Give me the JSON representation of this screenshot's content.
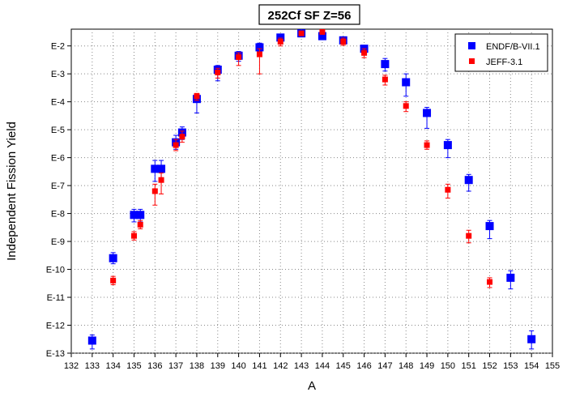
{
  "chart_data": {
    "type": "scatter",
    "title": "252Cf SF Z=56",
    "xlabel": "A",
    "ylabel": "Independent Fission Yield",
    "xlim": [
      132,
      155
    ],
    "ylim_exponent": [
      -13,
      -1.4
    ],
    "yscale": "log",
    "xticks": [
      "132",
      "133",
      "134",
      "135",
      "136",
      "137",
      "138",
      "139",
      "140",
      "141",
      "142",
      "143",
      "144",
      "145",
      "146",
      "147",
      "148",
      "149",
      "150",
      "151",
      "152",
      "153",
      "154",
      "155"
    ],
    "yticks": [
      {
        "label": "E-2",
        "exp": -2
      },
      {
        "label": "E-3",
        "exp": -3
      },
      {
        "label": "E-4",
        "exp": -4
      },
      {
        "label": "E-5",
        "exp": -5
      },
      {
        "label": "E-6",
        "exp": -6
      },
      {
        "label": "E-7",
        "exp": -7
      },
      {
        "label": "E-8",
        "exp": -8
      },
      {
        "label": "E-9",
        "exp": -9
      },
      {
        "label": "E-10",
        "exp": -10
      },
      {
        "label": "E-11",
        "exp": -11
      },
      {
        "label": "E-12",
        "exp": -12
      },
      {
        "label": "E-13",
        "exp": -13
      }
    ],
    "grid": true,
    "legend_position": "top-right",
    "series": [
      {
        "name": "ENDF/B-VII.1",
        "color": "#0000ff",
        "marker": "square-large",
        "points": [
          {
            "x": 133,
            "exp": -12.55,
            "err_lo": -12.85,
            "err_hi": -12.35
          },
          {
            "x": 134,
            "exp": -9.6,
            "err_lo": -9.8,
            "err_hi": -9.4
          },
          {
            "x": 135,
            "exp": -8.05,
            "err_lo": -8.3,
            "err_hi": -7.85
          },
          {
            "x": 135.3,
            "exp": -8.05,
            "err_lo": -8.3,
            "err_hi": -7.85
          },
          {
            "x": 136,
            "exp": -6.4,
            "err_lo": -6.85,
            "err_hi": -6.1
          },
          {
            "x": 136.3,
            "exp": -6.4,
            "err_lo": -6.85,
            "err_hi": -6.1
          },
          {
            "x": 137,
            "exp": -5.45,
            "err_lo": -5.7,
            "err_hi": -5.2
          },
          {
            "x": 137.3,
            "exp": -5.1,
            "err_lo": -5.35,
            "err_hi": -4.9
          },
          {
            "x": 138,
            "exp": -3.9,
            "err_lo": -4.4,
            "err_hi": -3.75
          },
          {
            "x": 139,
            "exp": -2.85,
            "err_lo": -3.25,
            "err_hi": -2.7
          },
          {
            "x": 140,
            "exp": -2.35,
            "err_lo": -2.55,
            "err_hi": -2.2
          },
          {
            "x": 141,
            "exp": -2.05,
            "err_lo": -2.2,
            "err_hi": -1.9
          },
          {
            "x": 142,
            "exp": -1.7,
            "err_lo": -1.82,
            "err_hi": -1.6
          },
          {
            "x": 143,
            "exp": -1.55,
            "err_lo": -1.62,
            "err_hi": -1.48
          },
          {
            "x": 144,
            "exp": -1.65,
            "err_lo": -1.72,
            "err_hi": -1.58
          },
          {
            "x": 145,
            "exp": -1.8,
            "err_lo": -1.92,
            "err_hi": -1.7
          },
          {
            "x": 146,
            "exp": -2.1,
            "err_lo": -2.25,
            "err_hi": -1.98
          },
          {
            "x": 147,
            "exp": -2.65,
            "err_lo": -2.9,
            "err_hi": -2.45
          },
          {
            "x": 148,
            "exp": -3.3,
            "err_lo": -3.8,
            "err_hi": -3.0
          },
          {
            "x": 149,
            "exp": -4.4,
            "err_lo": -4.95,
            "err_hi": -4.2
          },
          {
            "x": 150,
            "exp": -5.55,
            "err_lo": -6.0,
            "err_hi": -5.35
          },
          {
            "x": 151,
            "exp": -6.8,
            "err_lo": -7.2,
            "err_hi": -6.6
          },
          {
            "x": 152,
            "exp": -8.45,
            "err_lo": -8.9,
            "err_hi": -8.25
          },
          {
            "x": 153,
            "exp": -10.3,
            "err_lo": -10.7,
            "err_hi": -10.05
          },
          {
            "x": 154,
            "exp": -12.5,
            "err_lo": -12.85,
            "err_hi": -12.2
          }
        ]
      },
      {
        "name": "JEFF-3.1",
        "color": "#ff0000",
        "marker": "square-small",
        "points": [
          {
            "x": 134,
            "exp": -10.4,
            "err_lo": -10.55,
            "err_hi": -10.25
          },
          {
            "x": 135,
            "exp": -8.8,
            "err_lo": -8.95,
            "err_hi": -8.65
          },
          {
            "x": 135.3,
            "exp": -8.4,
            "err_lo": -8.55,
            "err_hi": -8.25
          },
          {
            "x": 136,
            "exp": -7.2,
            "err_lo": -7.7,
            "err_hi": -6.95
          },
          {
            "x": 136.3,
            "exp": -6.8,
            "err_lo": -7.3,
            "err_hi": -6.55
          },
          {
            "x": 137,
            "exp": -5.55,
            "err_lo": -5.75,
            "err_hi": -5.35
          },
          {
            "x": 137.3,
            "exp": -5.25,
            "err_lo": -5.45,
            "err_hi": -5.05
          },
          {
            "x": 138,
            "exp": -3.8,
            "err_lo": -3.95,
            "err_hi": -3.7
          },
          {
            "x": 139,
            "exp": -2.95,
            "err_lo": -3.15,
            "err_hi": -2.8
          },
          {
            "x": 140,
            "exp": -2.4,
            "err_lo": -2.7,
            "err_hi": -2.25
          },
          {
            "x": 141,
            "exp": -2.3,
            "err_lo": -3.0,
            "err_hi": -2.1
          },
          {
            "x": 142,
            "exp": -1.85,
            "err_lo": -2.0,
            "err_hi": -1.72
          },
          {
            "x": 143,
            "exp": -1.55,
            "err_lo": -1.62,
            "err_hi": -1.48
          },
          {
            "x": 144,
            "exp": -1.5,
            "err_lo": -1.57,
            "err_hi": -1.43
          },
          {
            "x": 145,
            "exp": -1.85,
            "err_lo": -1.98,
            "err_hi": -1.72
          },
          {
            "x": 146,
            "exp": -2.25,
            "err_lo": -2.42,
            "err_hi": -2.1
          },
          {
            "x": 147,
            "exp": -3.2,
            "err_lo": -3.4,
            "err_hi": -3.05
          },
          {
            "x": 148,
            "exp": -4.15,
            "err_lo": -4.35,
            "err_hi": -4.0
          },
          {
            "x": 149,
            "exp": -5.55,
            "err_lo": -5.7,
            "err_hi": -5.4
          },
          {
            "x": 150,
            "exp": -7.15,
            "err_lo": -7.45,
            "err_hi": -6.95
          },
          {
            "x": 151,
            "exp": -8.8,
            "err_lo": -9.05,
            "err_hi": -8.6
          },
          {
            "x": 152,
            "exp": -10.45,
            "err_lo": -10.65,
            "err_hi": -10.3
          }
        ]
      }
    ]
  }
}
